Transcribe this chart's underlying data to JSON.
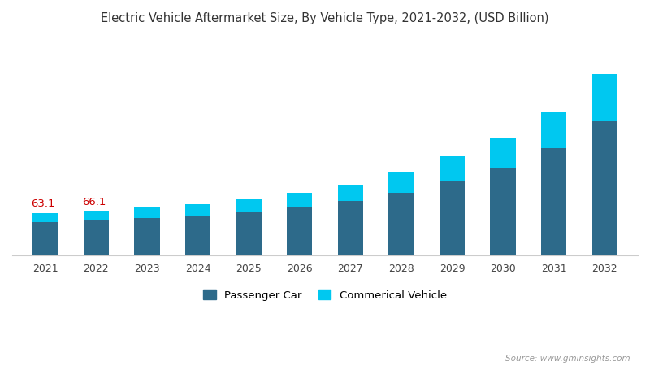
{
  "title": "Electric Vehicle Aftermarket Size, By Vehicle Type, 2021-2032, (USD Billion)",
  "years": [
    2021,
    2022,
    2023,
    2024,
    2025,
    2026,
    2027,
    2028,
    2029,
    2030,
    2031,
    2032
  ],
  "passenger_car": [
    50.0,
    52.5,
    55.5,
    59.0,
    64.0,
    71.0,
    80.0,
    93.0,
    111.0,
    130.0,
    158.0,
    197.0
  ],
  "commercial_vehicle": [
    13.1,
    13.6,
    15.5,
    17.0,
    19.5,
    22.0,
    25.0,
    29.0,
    35.0,
    43.0,
    53.0,
    70.0
  ],
  "labels_2021": "63.1",
  "labels_2022": "66.1",
  "passenger_color": "#2d6a8a",
  "commercial_color": "#00c8f0",
  "background_color": "#ffffff",
  "legend_passenger": "Passenger Car",
  "legend_commercial": "Commerical Vehicle",
  "source_text": "Source: www.gminsights.com",
  "title_color": "#333333",
  "label_color": "#cc0000",
  "bar_width": 0.5,
  "ylim_max": 320,
  "title_fontsize": 10.5,
  "tick_fontsize": 9
}
